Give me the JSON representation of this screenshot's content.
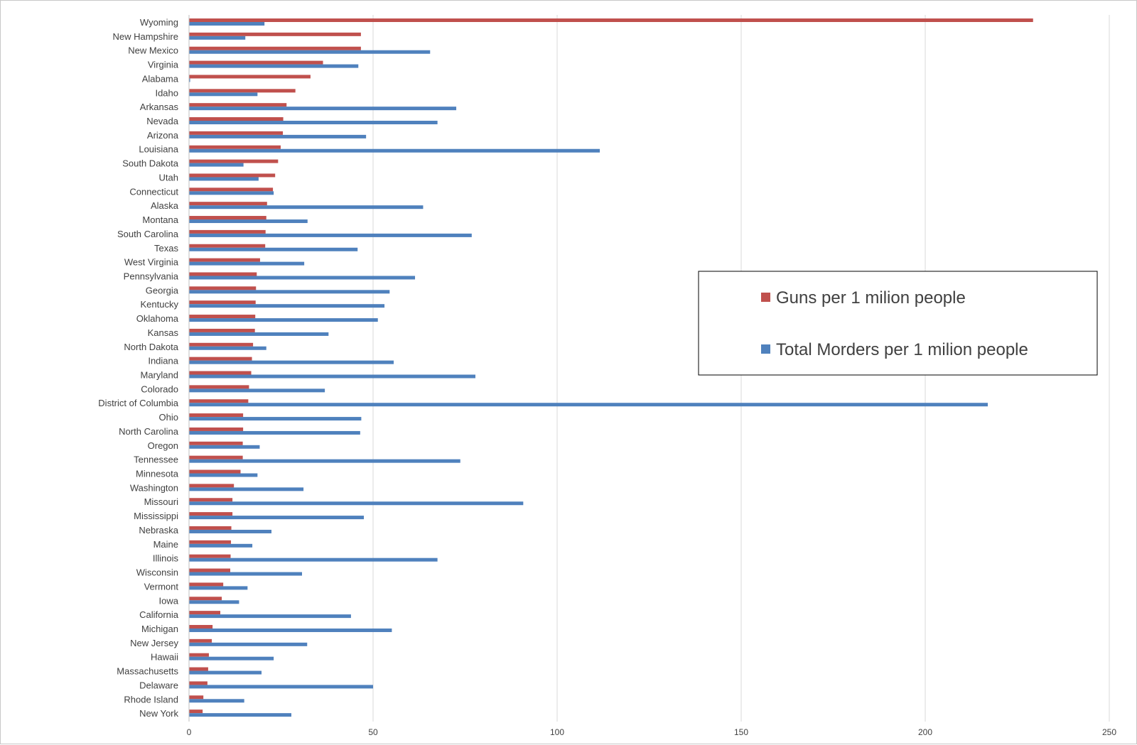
{
  "chart_data": {
    "type": "bar",
    "orientation": "horizontal",
    "categories": [
      "Wyoming",
      "New Hampshire",
      "New Mexico",
      "Virginia",
      "Alabama",
      "Idaho",
      "Arkansas",
      "Nevada",
      "Arizona",
      "Louisiana",
      "South Dakota",
      "Utah",
      "Connecticut",
      "Alaska",
      "Montana",
      "South Carolina",
      "Texas",
      "West Virginia",
      "Pennsylvania",
      "Georgia",
      "Kentucky",
      "Oklahoma",
      "Kansas",
      "North Dakota",
      "Indiana",
      "Maryland",
      "Colorado",
      "District of Columbia",
      "Ohio",
      "North Carolina",
      "Oregon",
      "Tennessee",
      "Minnesota",
      "Washington",
      "Missouri",
      "Mississippi",
      "Nebraska",
      "Maine",
      "Illinois",
      "Wisconsin",
      "Vermont",
      "Iowa",
      "California",
      "Michigan",
      "New Jersey",
      "Hawaii",
      "Massachusetts",
      "Delaware",
      "Rhode Island",
      "New York"
    ],
    "series": [
      {
        "name": "Guns per 1 milion people",
        "color": "#C0504D",
        "values": [
          229.2,
          46.6,
          46.6,
          36.3,
          32.9,
          28.8,
          26.4,
          25.5,
          25.4,
          24.8,
          24.1,
          23.3,
          22.7,
          21.1,
          20.9,
          20.7,
          20.6,
          19.2,
          18.3,
          18.1,
          18.0,
          17.9,
          17.8,
          17.3,
          17.0,
          16.8,
          16.2,
          16.0,
          14.6,
          14.6,
          14.5,
          14.5,
          13.9,
          12.1,
          11.7,
          11.7,
          11.4,
          11.3,
          11.2,
          11.1,
          9.2,
          8.8,
          8.4,
          6.3,
          6.1,
          5.3,
          5.1,
          4.9,
          3.8,
          3.6
        ]
      },
      {
        "name": "Total Morders per 1 milion people",
        "color": "#4F81BD",
        "values": [
          20.4,
          15.2,
          65.4,
          45.9,
          0.2,
          18.5,
          72.5,
          67.4,
          48.0,
          111.5,
          14.7,
          18.8,
          22.9,
          63.5,
          32.1,
          76.7,
          45.7,
          31.2,
          61.3,
          54.4,
          53.0,
          51.2,
          37.8,
          20.9,
          55.5,
          77.7,
          36.8,
          216.9,
          46.7,
          46.4,
          19.1,
          73.6,
          18.5,
          31.0,
          90.7,
          47.4,
          22.3,
          17.1,
          67.4,
          30.6,
          15.8,
          13.5,
          43.9,
          55.0,
          32.0,
          22.9,
          19.6,
          49.9,
          14.9,
          27.7
        ]
      }
    ],
    "x_ticks": [
      "0",
      "50",
      "100",
      "150",
      "200",
      "250"
    ],
    "xlim": [
      0,
      250
    ],
    "title": "",
    "xlabel": "",
    "ylabel": "",
    "grid": "vertical",
    "legend_position": "right-middle"
  }
}
